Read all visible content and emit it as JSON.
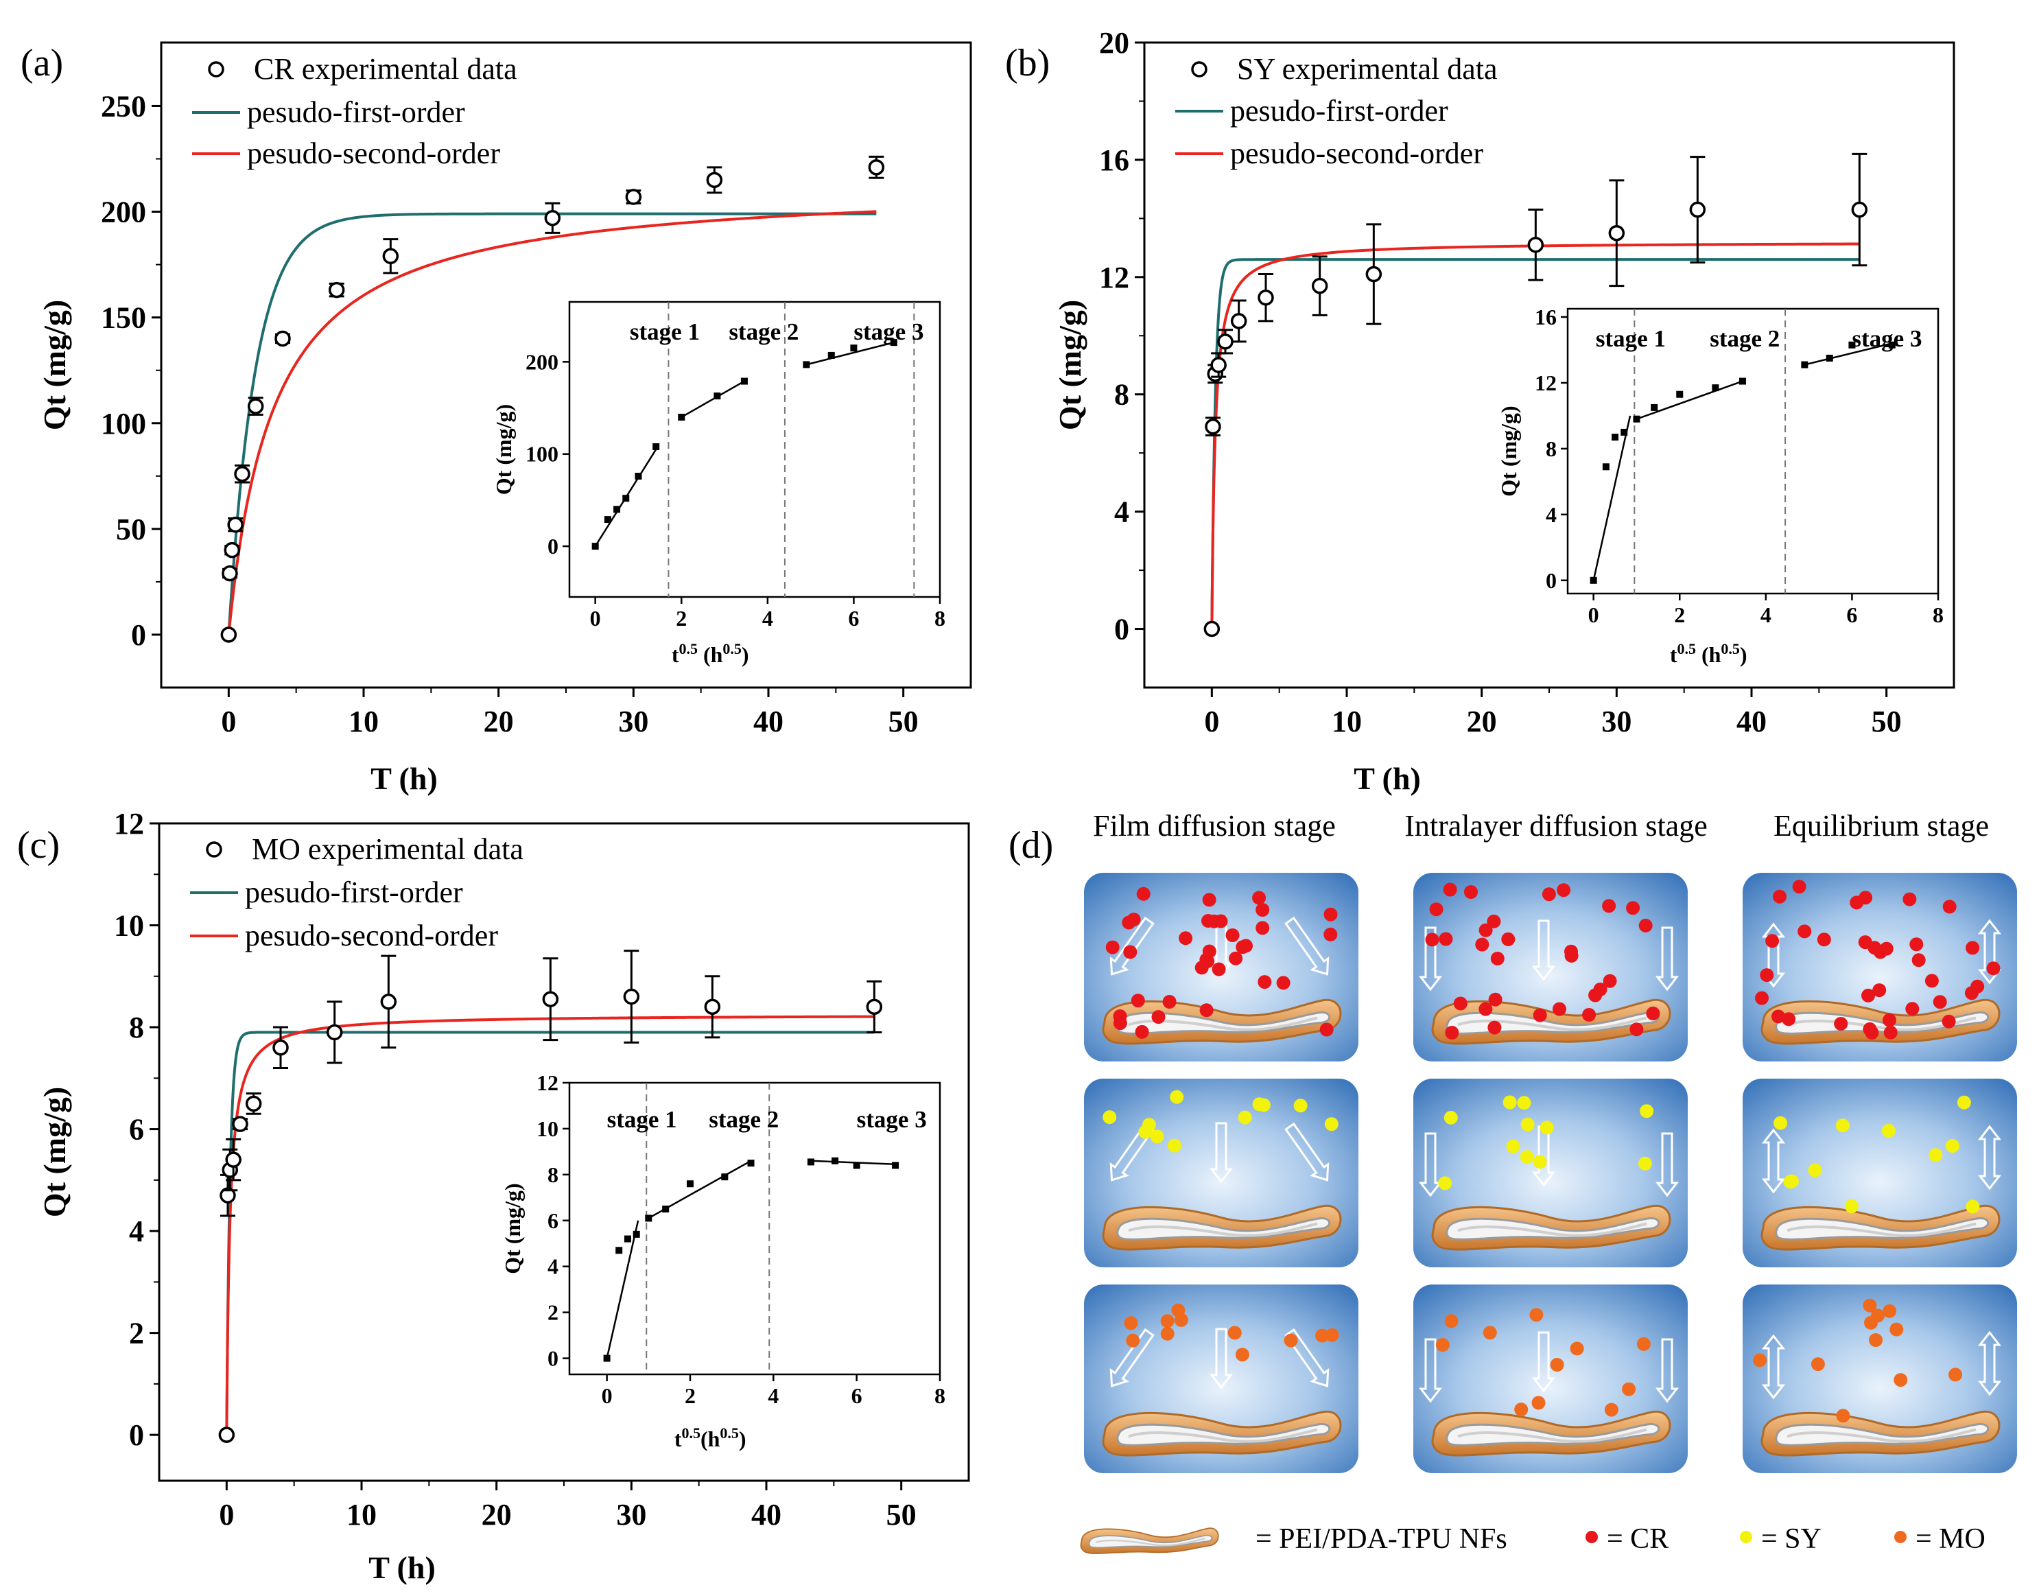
{
  "chart_data": [
    {
      "panel": "(a)",
      "type": "scatter",
      "xlabel": "T (h)",
      "ylabel": "Qt (mg/g)",
      "xlim": [
        -5,
        55
      ],
      "ylim": [
        -25,
        280
      ],
      "xticks": [
        0,
        10,
        20,
        30,
        40,
        50
      ],
      "yticks": [
        0,
        50,
        100,
        150,
        200,
        250
      ],
      "experimental": {
        "name": "CR experimental data",
        "points": [
          [
            0,
            0
          ],
          [
            0.083,
            29
          ],
          [
            0.25,
            40
          ],
          [
            0.5,
            52
          ],
          [
            1,
            76
          ],
          [
            2,
            108
          ],
          [
            4,
            140
          ],
          [
            8,
            163
          ],
          [
            12,
            179
          ],
          [
            24,
            197
          ],
          [
            30,
            207
          ],
          [
            36,
            215
          ],
          [
            48,
            221
          ]
        ],
        "errors": [
          0,
          2,
          2,
          3,
          4,
          4,
          2,
          3,
          8,
          7,
          3,
          6,
          5
        ]
      },
      "fits": [
        {
          "name": "pesudo-first-order",
          "color": "#1f6e6e",
          "model": "pfo",
          "qe": 199,
          "k": 0.5
        },
        {
          "name": "pesudo-second-order",
          "color": "#e8251e",
          "model": "pso",
          "qe": 214,
          "k": 0.0014
        }
      ],
      "fit_range": [
        0,
        48
      ],
      "inset": {
        "type": "line",
        "xlabel_base": "t",
        "xlabel_sup1": "0.5",
        "xlabel_mid": " (h",
        "xlabel_sup2": "0.5",
        "xlabel_end": ")",
        "ylabel": "Qt (mg/g)",
        "xlim": [
          -0.6,
          8
        ],
        "ylim": [
          -55,
          265
        ],
        "xticks": [
          0,
          2,
          4,
          6,
          8
        ],
        "yticks": [
          0,
          100,
          200
        ],
        "stages": [
          "stage 1",
          "stage 2",
          "stage 3"
        ],
        "dividers": [
          1.7,
          4.4,
          7.4
        ],
        "segments": [
          {
            "points": [
              [
                0,
                0
              ],
              [
                0.29,
                29
              ],
              [
                0.5,
                40
              ],
              [
                0.71,
                52
              ],
              [
                1,
                76
              ],
              [
                1.41,
                108
              ]
            ],
            "fit": [
              [
                0,
                0
              ],
              [
                1.45,
                108
              ]
            ]
          },
          {
            "points": [
              [
                2,
                140
              ],
              [
                2.83,
                163
              ],
              [
                3.46,
                179
              ]
            ],
            "fit": [
              [
                2,
                140
              ],
              [
                3.46,
                179
              ]
            ]
          },
          {
            "points": [
              [
                4.9,
                197
              ],
              [
                5.48,
                207
              ],
              [
                6,
                215
              ],
              [
                6.93,
                221
              ]
            ],
            "fit": [
              [
                4.9,
                197
              ],
              [
                6.93,
                221
              ]
            ]
          }
        ]
      }
    },
    {
      "panel": "(b)",
      "type": "scatter",
      "xlabel": "T (h)",
      "ylabel": "Qt (mg/g)",
      "xlim": [
        -5,
        55
      ],
      "ylim": [
        -2,
        20
      ],
      "xticks": [
        0,
        10,
        20,
        30,
        40,
        50
      ],
      "yticks": [
        0,
        4,
        8,
        12,
        16,
        20
      ],
      "experimental": {
        "name": "SY experimental data",
        "points": [
          [
            0,
            0
          ],
          [
            0.083,
            6.9
          ],
          [
            0.25,
            8.7
          ],
          [
            0.5,
            9.0
          ],
          [
            1,
            9.8
          ],
          [
            2,
            10.5
          ],
          [
            4,
            11.3
          ],
          [
            8,
            11.7
          ],
          [
            12,
            12.1
          ],
          [
            24,
            13.1
          ],
          [
            30,
            13.5
          ],
          [
            36,
            14.3
          ],
          [
            48,
            14.3
          ]
        ],
        "errors": [
          0,
          0.3,
          0.3,
          0.4,
          0.4,
          0.7,
          0.8,
          1.0,
          1.7,
          1.2,
          1.8,
          1.8,
          1.9
        ]
      },
      "fits": [
        {
          "name": "pesudo-first-order",
          "color": "#1f6e6e",
          "model": "pfo",
          "qe": 12.6,
          "k": 3.8
        },
        {
          "name": "pesudo-second-order",
          "color": "#e8251e",
          "model": "pso",
          "qe": 13.2,
          "k": 0.3
        }
      ],
      "fit_range": [
        0,
        48
      ],
      "inset": {
        "type": "line",
        "xlabel_base": "t",
        "xlabel_sup1": "0.5",
        "xlabel_mid": " (h",
        "xlabel_sup2": "0.5",
        "xlabel_end": ")",
        "ylabel": "Qt (mg/g)",
        "xlim": [
          -0.6,
          8
        ],
        "ylim": [
          -0.8,
          16.5
        ],
        "xticks": [
          0,
          2,
          4,
          6,
          8
        ],
        "yticks": [
          0,
          4,
          8,
          12,
          16
        ],
        "stages": [
          "stage 1",
          "stage 2",
          "stage 3"
        ],
        "dividers": [
          0.95,
          4.45
        ],
        "segments": [
          {
            "points": [
              [
                0,
                0
              ],
              [
                0.29,
                6.9
              ],
              [
                0.5,
                8.7
              ],
              [
                0.71,
                9.0
              ]
            ],
            "fit": [
              [
                0,
                0
              ],
              [
                0.85,
                10
              ]
            ]
          },
          {
            "points": [
              [
                1,
                9.8
              ],
              [
                1.41,
                10.5
              ],
              [
                2,
                11.3
              ],
              [
                2.83,
                11.7
              ],
              [
                3.46,
                12.1
              ]
            ],
            "fit": [
              [
                1,
                9.8
              ],
              [
                3.46,
                12.1
              ]
            ]
          },
          {
            "points": [
              [
                4.9,
                13.1
              ],
              [
                5.48,
                13.5
              ],
              [
                6,
                14.3
              ],
              [
                6.93,
                14.3
              ]
            ],
            "fit": [
              [
                4.9,
                13.1
              ],
              [
                6.93,
                14.4
              ]
            ]
          }
        ]
      }
    },
    {
      "panel": "(c)",
      "type": "scatter",
      "xlabel": "T (h)",
      "ylabel": "Qt (mg/g)",
      "xlim": [
        -5,
        55
      ],
      "ylim": [
        -0.9,
        12
      ],
      "xticks": [
        0,
        10,
        20,
        30,
        40,
        50
      ],
      "yticks": [
        0,
        2,
        4,
        6,
        8,
        10,
        12
      ],
      "experimental": {
        "name": "MO experimental data",
        "points": [
          [
            0,
            0
          ],
          [
            0.083,
            4.7
          ],
          [
            0.25,
            5.2
          ],
          [
            0.5,
            5.4
          ],
          [
            1,
            6.1
          ],
          [
            2,
            6.5
          ],
          [
            4,
            7.6
          ],
          [
            8,
            7.9
          ],
          [
            12,
            8.5
          ],
          [
            24,
            8.55
          ],
          [
            30,
            8.6
          ],
          [
            36,
            8.4
          ],
          [
            48,
            8.4
          ]
        ],
        "errors": [
          0,
          0.4,
          0.4,
          0.4,
          0.1,
          0.2,
          0.4,
          0.6,
          0.9,
          0.8,
          0.9,
          0.6,
          0.5
        ]
      },
      "fits": [
        {
          "name": "pesudo-first-order",
          "color": "#1f6e6e",
          "model": "pfo",
          "qe": 7.9,
          "k": 4.0
        },
        {
          "name": "pesudo-second-order",
          "color": "#e8251e",
          "model": "pso",
          "qe": 8.25,
          "k": 0.5
        }
      ],
      "fit_range": [
        0,
        48
      ],
      "inset": {
        "type": "line",
        "xlabel_base": "t",
        "xlabel_sup1": "0.5",
        "xlabel_mid": "(h",
        "xlabel_sup2": "0.5",
        "xlabel_end": ")",
        "ylabel": "Qt (mg/g)",
        "xlim": [
          -0.9,
          8
        ],
        "ylim": [
          -0.7,
          12
        ],
        "xticks": [
          0,
          2,
          4,
          6,
          8
        ],
        "yticks": [
          0,
          2,
          4,
          6,
          8,
          10,
          12
        ],
        "stages": [
          "stage 1",
          "stage 2",
          "stage 3"
        ],
        "dividers": [
          0.95,
          3.9
        ],
        "segments": [
          {
            "points": [
              [
                0,
                0
              ],
              [
                0.29,
                4.7
              ],
              [
                0.5,
                5.2
              ],
              [
                0.71,
                5.4
              ]
            ],
            "fit": [
              [
                0,
                0
              ],
              [
                0.75,
                6
              ]
            ]
          },
          {
            "points": [
              [
                1,
                6.1
              ],
              [
                1.41,
                6.5
              ],
              [
                2,
                7.6
              ],
              [
                2.83,
                7.9
              ],
              [
                3.46,
                8.5
              ]
            ],
            "fit": [
              [
                1,
                6.1
              ],
              [
                3.46,
                8.6
              ]
            ]
          },
          {
            "points": [
              [
                4.9,
                8.55
              ],
              [
                5.48,
                8.6
              ],
              [
                6,
                8.4
              ],
              [
                6.93,
                8.4
              ]
            ],
            "fit": [
              [
                4.9,
                8.6
              ],
              [
                6.93,
                8.45
              ]
            ]
          }
        ]
      }
    }
  ],
  "scheme": {
    "panel": "(d)",
    "headings": [
      "Film diffusion stage",
      "Intralayer diffusion stage",
      "Equilibrium stage"
    ],
    "rows": [
      {
        "dye": "CR",
        "color": "#e8151b"
      },
      {
        "dye": "SY",
        "color": "#f2f20c"
      },
      {
        "dye": "MO",
        "color": "#f06a1e"
      }
    ],
    "legend": {
      "fiber_label": "= PEI/PDA-TPU  NFs",
      "cr_label": "= CR",
      "sy_label": "= SY",
      "mo_label": "= MO"
    }
  }
}
